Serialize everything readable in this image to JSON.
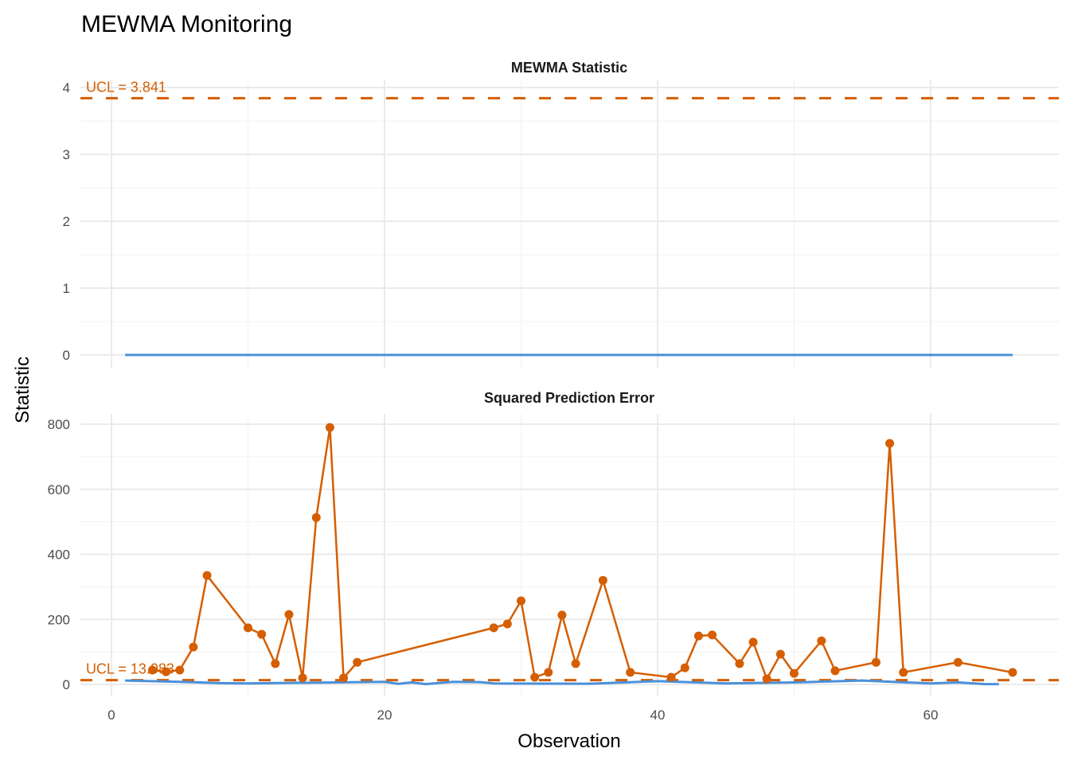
{
  "chart_data": {
    "type": "line",
    "title": "MEWMA Monitoring",
    "xlabel": "Observation",
    "ylabel": "Statistic",
    "xlim": [
      -2,
      69
    ],
    "x_ticks": [
      "0",
      "20",
      "40",
      "60"
    ],
    "grid": true,
    "colors": {
      "statistic": "#4A90D9",
      "spe": "#D55E00",
      "ucl": "#D55E00"
    },
    "panels": [
      {
        "strip_title": "MEWMA Statistic",
        "ylim": [
          0,
          4
        ],
        "y_ticks": [
          "0",
          "1",
          "2",
          "3",
          "4"
        ],
        "ucl": 3.841,
        "ucl_label": "UCL =  3.841",
        "line": {
          "x": [
            1,
            66
          ],
          "y": [
            0,
            0
          ]
        },
        "points": {
          "x": [],
          "y": []
        }
      },
      {
        "strip_title": "Squared Prediction Error",
        "ylim": [
          0,
          800
        ],
        "y_ticks": [
          "0",
          "200",
          "400",
          "600",
          "800"
        ],
        "ucl": 13.083,
        "ucl_label": "UCL = 13.083",
        "line": {
          "x": [
            1,
            5,
            8,
            10,
            20,
            21,
            22,
            23,
            25,
            27,
            28,
            35,
            40,
            45,
            50,
            55,
            60,
            62,
            64,
            65
          ],
          "y": [
            12,
            8,
            4,
            3,
            8,
            2,
            6,
            1,
            8,
            7,
            3,
            2,
            10,
            3,
            6,
            12,
            3,
            6,
            1,
            1
          ]
        },
        "points": {
          "x": [
            3,
            4,
            5,
            6,
            7,
            10,
            11,
            12,
            13,
            14,
            15,
            16,
            17,
            18,
            28,
            29,
            30,
            31,
            32,
            33,
            34,
            36,
            38,
            41,
            42,
            43,
            44,
            46,
            47,
            48,
            49,
            50,
            52,
            53,
            56,
            57,
            58,
            62,
            66
          ],
          "y": [
            44,
            39,
            44,
            115,
            335,
            174,
            154,
            64,
            215,
            20,
            513,
            790,
            20,
            68,
            174,
            186,
            257,
            22,
            37,
            213,
            64,
            320,
            37,
            22,
            51,
            149,
            152,
            64,
            130,
            17,
            93,
            34,
            134,
            42,
            68,
            741,
            37,
            68,
            37
          ]
        }
      }
    ]
  }
}
